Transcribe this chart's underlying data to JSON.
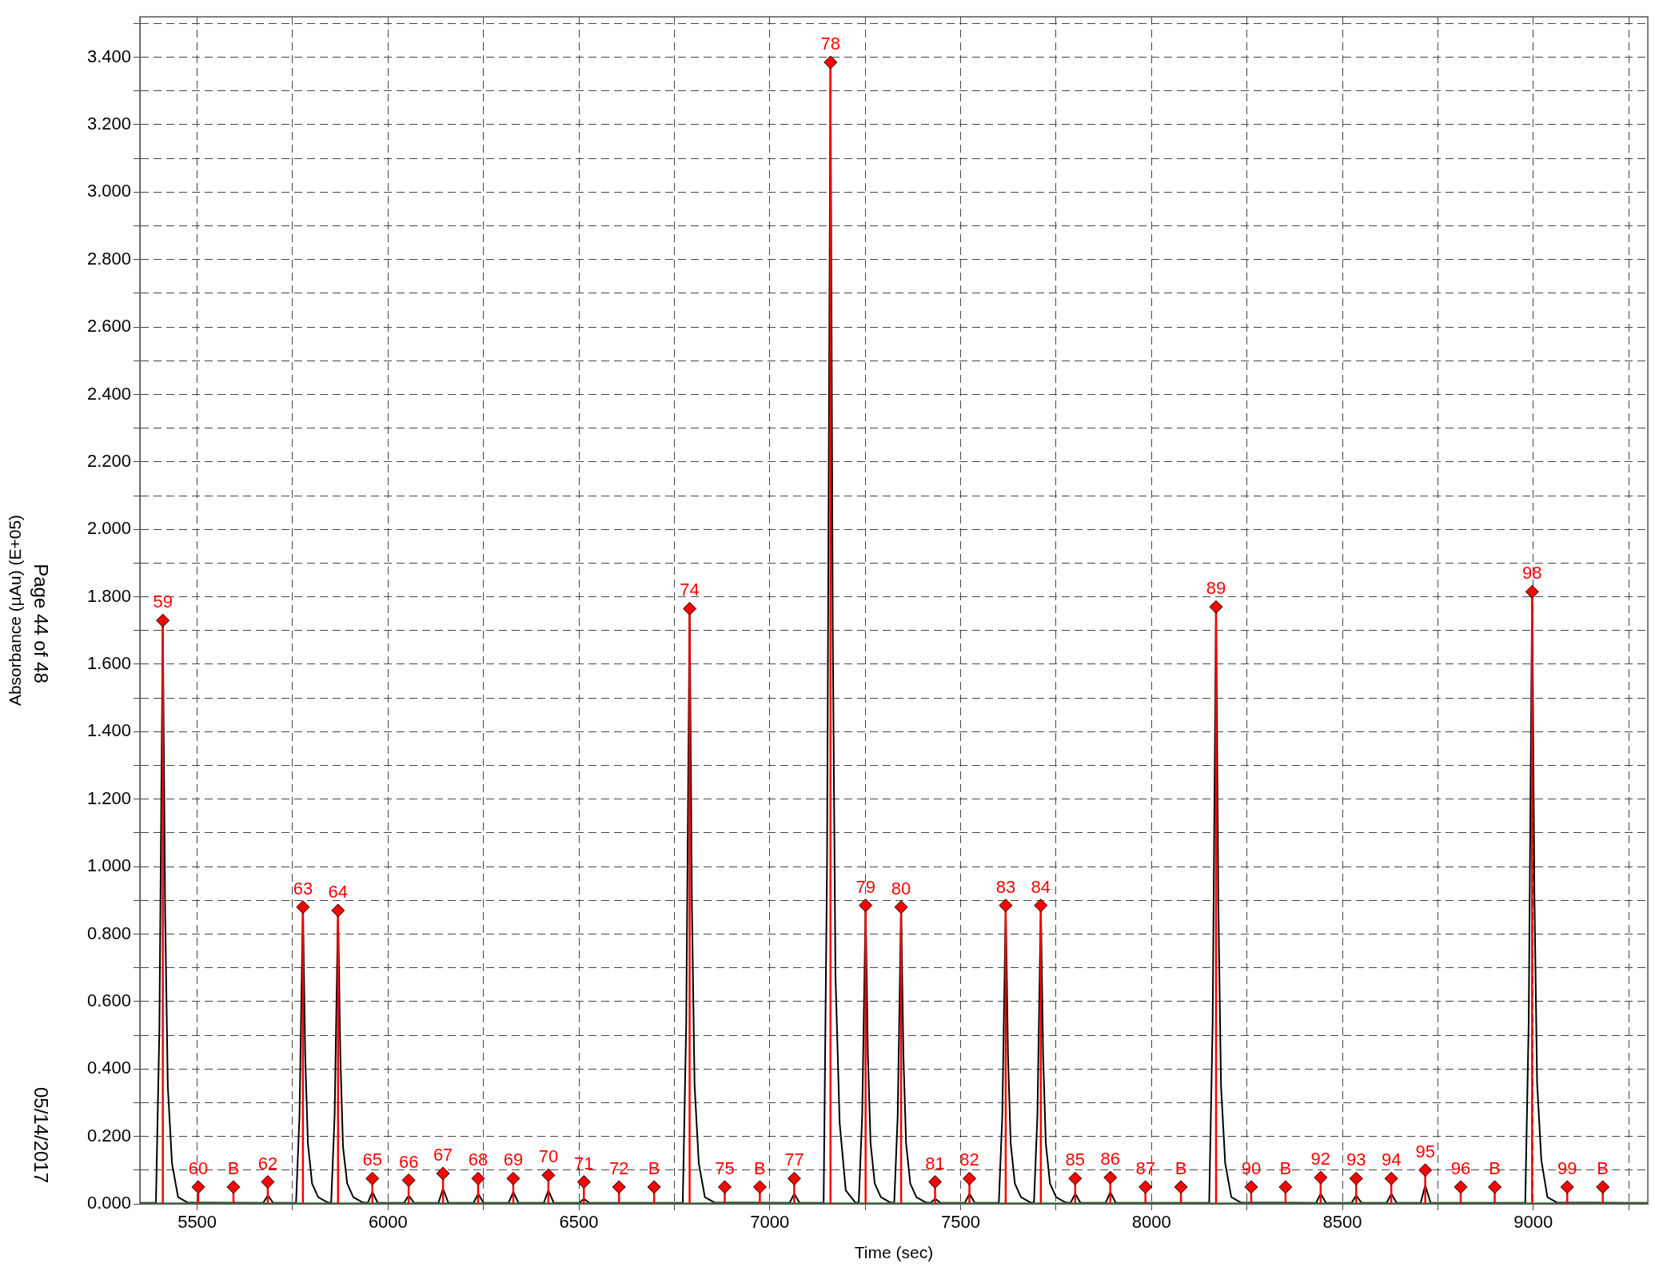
{
  "chart_data": {
    "type": "line",
    "xlabel": "Time (sec)",
    "ylabel": "Absorbance (µAu) (E+05)",
    "annotations": [
      "Page 44 of 48",
      "05/14/2017",
      {
        "text": "59",
        "x": 5410,
        "y": 1.73
      },
      {
        "text": "60",
        "x": 5503,
        "y": 0.05
      },
      {
        "text": "B",
        "x": 5595,
        "y": 0.05
      },
      {
        "text": "62",
        "x": 5685,
        "y": 0.065
      },
      {
        "text": "63",
        "x": 5777,
        "y": 0.88
      },
      {
        "text": "64",
        "x": 5869,
        "y": 0.87
      },
      {
        "text": "65",
        "x": 5959,
        "y": 0.075
      },
      {
        "text": "66",
        "x": 6054,
        "y": 0.07
      },
      {
        "text": "67",
        "x": 6144,
        "y": 0.09
      },
      {
        "text": "68",
        "x": 6236,
        "y": 0.075
      },
      {
        "text": "69",
        "x": 6328,
        "y": 0.075
      },
      {
        "text": "70",
        "x": 6420,
        "y": 0.085
      },
      {
        "text": "71",
        "x": 6513,
        "y": 0.065
      },
      {
        "text": "72",
        "x": 6605,
        "y": 0.05
      },
      {
        "text": "B",
        "x": 6697,
        "y": 0.05
      },
      {
        "text": "74",
        "x": 6790,
        "y": 1.765
      },
      {
        "text": "75",
        "x": 6882,
        "y": 0.05
      },
      {
        "text": "B",
        "x": 6974,
        "y": 0.05
      },
      {
        "text": "77",
        "x": 7064,
        "y": 0.075
      },
      {
        "text": "78",
        "x": 7159,
        "y": 3.385
      },
      {
        "text": "79",
        "x": 7251,
        "y": 0.885
      },
      {
        "text": "80",
        "x": 7344,
        "y": 0.88
      },
      {
        "text": "81",
        "x": 7433,
        "y": 0.065
      },
      {
        "text": "82",
        "x": 7523,
        "y": 0.075
      },
      {
        "text": "83",
        "x": 7618,
        "y": 0.885
      },
      {
        "text": "84",
        "x": 7710,
        "y": 0.885
      },
      {
        "text": "85",
        "x": 7800,
        "y": 0.075
      },
      {
        "text": "86",
        "x": 7892,
        "y": 0.078
      },
      {
        "text": "87",
        "x": 7984,
        "y": 0.05
      },
      {
        "text": "B",
        "x": 8077,
        "y": 0.05
      },
      {
        "text": "89",
        "x": 8169,
        "y": 1.77
      },
      {
        "text": "90",
        "x": 8261,
        "y": 0.05
      },
      {
        "text": "B",
        "x": 8351,
        "y": 0.05
      },
      {
        "text": "92",
        "x": 8443,
        "y": 0.078
      },
      {
        "text": "93",
        "x": 8536,
        "y": 0.075
      },
      {
        "text": "94",
        "x": 8628,
        "y": 0.075
      },
      {
        "text": "95",
        "x": 8717,
        "y": 0.1
      },
      {
        "text": "96",
        "x": 8810,
        "y": 0.05
      },
      {
        "text": "B",
        "x": 8899,
        "y": 0.05
      },
      {
        "text": "98",
        "x": 8997,
        "y": 1.815
      },
      {
        "text": "99",
        "x": 9089,
        "y": 0.05
      },
      {
        "text": "B",
        "x": 9182,
        "y": 0.05
      }
    ],
    "xlim": [
      5350,
      9300
    ],
    "ylim": [
      0,
      3.52
    ],
    "xticks": [
      5500,
      {
        "value": 5750,
        "label": null
      },
      6000,
      {
        "value": 6250,
        "label": null
      },
      6500,
      {
        "value": 6750,
        "label": null
      },
      7000,
      {
        "value": 7250,
        "label": null
      },
      7500,
      {
        "value": 7750,
        "label": null
      },
      8000,
      {
        "value": 8250,
        "label": null
      },
      8500,
      {
        "value": 8750,
        "label": null
      },
      9000,
      {
        "value": 9250,
        "label": null
      }
    ],
    "yticks": [
      {
        "value": 0,
        "label": "0.000"
      },
      {
        "value": 0.1,
        "label": null
      },
      {
        "value": 0.2,
        "label": "0.200"
      },
      {
        "value": 0.3,
        "label": null
      },
      {
        "value": 0.4,
        "label": "0.400"
      },
      {
        "value": 0.5,
        "label": null
      },
      {
        "value": 0.6,
        "label": "0.600"
      },
      {
        "value": 0.7,
        "label": null
      },
      {
        "value": 0.8,
        "label": "0.800"
      },
      {
        "value": 0.9,
        "label": null
      },
      {
        "value": 1.0,
        "label": "1.000"
      },
      {
        "value": 1.1,
        "label": null
      },
      {
        "value": 1.2,
        "label": "1.200"
      },
      {
        "value": 1.3,
        "label": null
      },
      {
        "value": 1.4,
        "label": "1.400"
      },
      {
        "value": 1.5,
        "label": null
      },
      {
        "value": 1.6,
        "label": "1.600"
      },
      {
        "value": 1.7,
        "label": null
      },
      {
        "value": 1.8,
        "label": "1.800"
      },
      {
        "value": 1.9,
        "label": null
      },
      {
        "value": 2.0,
        "label": "2.000"
      },
      {
        "value": 2.1,
        "label": null
      },
      {
        "value": 2.2,
        "label": "2.200"
      },
      {
        "value": 2.3,
        "label": null
      },
      {
        "value": 2.4,
        "label": "2.400"
      },
      {
        "value": 2.5,
        "label": null
      },
      {
        "value": 2.6,
        "label": "2.600"
      },
      {
        "value": 2.7,
        "label": null
      },
      {
        "value": 2.8,
        "label": "2.800"
      },
      {
        "value": 2.9,
        "label": null
      },
      {
        "value": 3.0,
        "label": "3.000"
      },
      {
        "value": 3.1,
        "label": null
      },
      {
        "value": 3.2,
        "label": "3.200"
      },
      {
        "value": 3.3,
        "label": null
      },
      {
        "value": 3.4,
        "label": "3.400"
      },
      {
        "value": 3.5,
        "label": null
      }
    ],
    "grid": true,
    "legend": false,
    "line_style": "solid",
    "series": [
      {
        "color": "#000000",
        "x": [
          5350,
          5392,
          5401,
          5410,
          5416,
          5423,
          5434,
          5450,
          5475,
          5673,
          5685,
          5699,
          5759,
          5768,
          5777,
          5783,
          5790,
          5801,
          5817,
          5842,
          5851,
          5860,
          5869,
          5875,
          5882,
          5893,
          5909,
          5934,
          5947,
          5959,
          5973,
          6042,
          6054,
          6068,
          6132,
          6144,
          6158,
          6224,
          6236,
          6250,
          6316,
          6328,
          6342,
          6408,
          6420,
          6434,
          6501,
          6513,
          6527,
          6772,
          6781,
          6790,
          6796,
          6803,
          6814,
          6830,
          6855,
          7052,
          7064,
          7078,
          7141,
          7150,
          7159,
          7165,
          7172,
          7183,
          7199,
          7224,
          7233,
          7242,
          7251,
          7257,
          7264,
          7275,
          7291,
          7316,
          7326,
          7335,
          7344,
          7350,
          7357,
          7368,
          7384,
          7409,
          7421,
          7433,
          7447,
          7511,
          7523,
          7537,
          7600,
          7609,
          7618,
          7624,
          7631,
          7642,
          7658,
          7683,
          7692,
          7701,
          7710,
          7716,
          7723,
          7734,
          7750,
          7775,
          7788,
          7800,
          7814,
          7880,
          7892,
          7906,
          8151,
          8160,
          8169,
          8175,
          8182,
          8193,
          8209,
          8234,
          8431,
          8443,
          8457,
          8524,
          8536,
          8550,
          8616,
          8628,
          8642,
          8705,
          8717,
          8731,
          8979,
          8988,
          8997,
          9003,
          9010,
          9021,
          9037,
          9062,
          9300
        ],
        "values": [
          0.003,
          0.003,
          0.52,
          1.73,
          0.87,
          0.35,
          0.12,
          0.02,
          0.004,
          0.003,
          0.025,
          0.003,
          0.003,
          0.26,
          0.88,
          0.44,
          0.18,
          0.06,
          0.02,
          0.004,
          0.003,
          0.26,
          0.87,
          0.44,
          0.17,
          0.06,
          0.02,
          0.004,
          0.003,
          0.035,
          0.003,
          0.003,
          0.025,
          0.003,
          0.003,
          0.045,
          0.003,
          0.003,
          0.03,
          0.003,
          0.003,
          0.035,
          0.003,
          0.003,
          0.04,
          0.003,
          0.003,
          0.015,
          0.003,
          0.003,
          0.53,
          1.76,
          0.88,
          0.35,
          0.12,
          0.02,
          0.004,
          0.003,
          0.03,
          0.003,
          0.003,
          1.01,
          3.38,
          1.69,
          0.68,
          0.24,
          0.04,
          0.004,
          0.003,
          0.26,
          0.88,
          0.44,
          0.18,
          0.06,
          0.02,
          0.004,
          0.003,
          0.26,
          0.88,
          0.44,
          0.18,
          0.06,
          0.02,
          0.004,
          0.003,
          0.015,
          0.003,
          0.003,
          0.03,
          0.003,
          0.003,
          0.26,
          0.88,
          0.44,
          0.18,
          0.06,
          0.02,
          0.004,
          0.003,
          0.26,
          0.88,
          0.44,
          0.18,
          0.06,
          0.02,
          0.004,
          0.003,
          0.03,
          0.003,
          0.003,
          0.035,
          0.003,
          0.003,
          0.53,
          1.77,
          0.89,
          0.35,
          0.12,
          0.02,
          0.004,
          0.003,
          0.03,
          0.003,
          0.003,
          0.025,
          0.003,
          0.003,
          0.03,
          0.003,
          0.003,
          0.055,
          0.003,
          0.003,
          0.54,
          1.81,
          0.91,
          0.36,
          0.13,
          0.02,
          0.004,
          0.003
        ]
      },
      {
        "color": "#1a8a1a",
        "x": [
          5350,
          9300
        ],
        "values": [
          0.002,
          0.002
        ]
      },
      {
        "type": "lollipop",
        "color": "#ff0000",
        "marker": "diamond",
        "x": [
          5410,
          5503,
          5595,
          5685,
          5777,
          5869,
          5959,
          6054,
          6144,
          6236,
          6328,
          6420,
          6513,
          6605,
          6697,
          6790,
          6882,
          6974,
          7064,
          7159,
          7251,
          7344,
          7433,
          7523,
          7618,
          7710,
          7800,
          7892,
          7984,
          8077,
          8169,
          8261,
          8351,
          8443,
          8536,
          8628,
          8717,
          8810,
          8899,
          8997,
          9089,
          9182
        ],
        "values": [
          1.73,
          0.05,
          0.05,
          0.065,
          0.88,
          0.87,
          0.075,
          0.07,
          0.09,
          0.075,
          0.075,
          0.085,
          0.065,
          0.05,
          0.05,
          1.765,
          0.05,
          0.05,
          0.075,
          3.385,
          0.885,
          0.88,
          0.065,
          0.075,
          0.885,
          0.885,
          0.075,
          0.078,
          0.05,
          0.05,
          1.77,
          0.05,
          0.05,
          0.078,
          0.075,
          0.075,
          0.1,
          0.05,
          0.05,
          1.815,
          0.05,
          0.05
        ]
      }
    ]
  }
}
